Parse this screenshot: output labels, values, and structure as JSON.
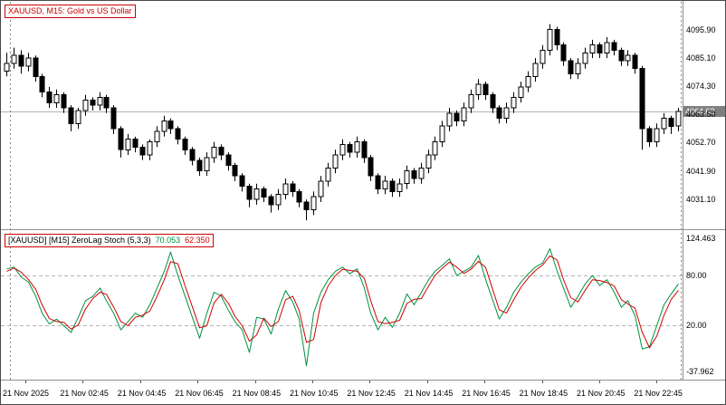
{
  "window": {
    "chart_title": "XAUUSD, M15:  Gold vs US Dollar",
    "indicator_title": "[XAUUSD] [M15] ZeroLag Stoch (5,3,3)",
    "indicator_value_main": "70.053",
    "indicator_value_signal": "62.350",
    "current_price": "4064.62"
  },
  "colors": {
    "background": "#ffffff",
    "bull_candle": "#ffffff",
    "bear_candle": "#000000",
    "candle_outline": "#000000",
    "main_line": "#009140",
    "signal_line": "#d10000",
    "label_red": "#cc0000",
    "price_box_bg": "#808080",
    "price_box_text": "#ffffff",
    "bid_line": "#b3b3b3",
    "level_line": "#b5b5b5",
    "separator": "#909090",
    "period_separator": "#888888"
  },
  "chart_data": [
    {
      "type": "candlestick",
      "symbol": "XAUUSD",
      "timeframe": "M15",
      "title": "XAUUSD, M15: Gold vs US Dollar",
      "ylim": [
        4021,
        4102
      ],
      "yticks": [
        {
          "value": 4095.9,
          "label": "4095.90"
        },
        {
          "value": 4085.1,
          "label": "4085.10"
        },
        {
          "value": 4074.3,
          "label": "4074.30"
        },
        {
          "value": 4063.5,
          "label": "4063.50"
        },
        {
          "value": 4052.7,
          "label": "4052.70"
        },
        {
          "value": 4041.9,
          "label": "4041.90"
        },
        {
          "value": 4031.1,
          "label": "4031.10"
        }
      ],
      "bid": 4064.62,
      "candles": [
        [
          4080,
          4087,
          4078,
          4083
        ],
        [
          4083,
          4089,
          4081,
          4086
        ],
        [
          4086,
          4088,
          4079,
          4082
        ],
        [
          4082,
          4087,
          4080,
          4085
        ],
        [
          4085,
          4086,
          4076,
          4078
        ],
        [
          4078,
          4079,
          4070,
          4072
        ],
        [
          4072,
          4074,
          4066,
          4068
        ],
        [
          4068,
          4073,
          4066,
          4071
        ],
        [
          4071,
          4072,
          4064,
          4066
        ],
        [
          4066,
          4067,
          4057,
          4060
        ],
        [
          4060,
          4066,
          4058,
          4065
        ],
        [
          4065,
          4071,
          4063,
          4069
        ],
        [
          4069,
          4070,
          4065,
          4067
        ],
        [
          4067,
          4072,
          4065,
          4070
        ],
        [
          4070,
          4071,
          4064,
          4066
        ],
        [
          4066,
          4067,
          4056,
          4058
        ],
        [
          4058,
          4059,
          4047,
          4050
        ],
        [
          4050,
          4056,
          4048,
          4054
        ],
        [
          4054,
          4055,
          4049,
          4051
        ],
        [
          4051,
          4052,
          4046,
          4048
        ],
        [
          4048,
          4054,
          4046,
          4053
        ],
        [
          4053,
          4059,
          4051,
          4057
        ],
        [
          4057,
          4063,
          4055,
          4061
        ],
        [
          4061,
          4062,
          4056,
          4058
        ],
        [
          4058,
          4059,
          4052,
          4054
        ],
        [
          4054,
          4055,
          4048,
          4050
        ],
        [
          4050,
          4051,
          4044,
          4046
        ],
        [
          4046,
          4047,
          4040,
          4042
        ],
        [
          4042,
          4049,
          4040,
          4047
        ],
        [
          4047,
          4053,
          4045,
          4051
        ],
        [
          4051,
          4052,
          4046,
          4048
        ],
        [
          4048,
          4049,
          4042,
          4044
        ],
        [
          4044,
          4045,
          4038,
          4040
        ],
        [
          4040,
          4041,
          4034,
          4036
        ],
        [
          4036,
          4037,
          4028,
          4031
        ],
        [
          4031,
          4037,
          4029,
          4035
        ],
        [
          4035,
          4036,
          4030,
          4032
        ],
        [
          4032,
          4033,
          4026,
          4029
        ],
        [
          4029,
          4035,
          4027,
          4033
        ],
        [
          4033,
          4039,
          4031,
          4037
        ],
        [
          4037,
          4038,
          4032,
          4034
        ],
        [
          4034,
          4035,
          4028,
          4030
        ],
        [
          4030,
          4031,
          4023,
          4027
        ],
        [
          4027,
          4034,
          4025,
          4032
        ],
        [
          4032,
          4040,
          4030,
          4038
        ],
        [
          4038,
          4045,
          4036,
          4043
        ],
        [
          4043,
          4050,
          4041,
          4048
        ],
        [
          4048,
          4054,
          4046,
          4052
        ],
        [
          4052,
          4053,
          4047,
          4049
        ],
        [
          4049,
          4055,
          4047,
          4053
        ],
        [
          4053,
          4054,
          4045,
          4047
        ],
        [
          4047,
          4048,
          4038,
          4040
        ],
        [
          4040,
          4041,
          4033,
          4035
        ],
        [
          4035,
          4040,
          4033,
          4038
        ],
        [
          4038,
          4039,
          4032,
          4034
        ],
        [
          4034,
          4039,
          4032,
          4037
        ],
        [
          4037,
          4044,
          4035,
          4042
        ],
        [
          4042,
          4043,
          4037,
          4039
        ],
        [
          4039,
          4045,
          4037,
          4043
        ],
        [
          4043,
          4050,
          4041,
          4048
        ],
        [
          4048,
          4055,
          4046,
          4053
        ],
        [
          4053,
          4061,
          4051,
          4059
        ],
        [
          4059,
          4066,
          4057,
          4064
        ],
        [
          4064,
          4065,
          4059,
          4061
        ],
        [
          4061,
          4068,
          4059,
          4066
        ],
        [
          4066,
          4073,
          4064,
          4071
        ],
        [
          4071,
          4077,
          4069,
          4075
        ],
        [
          4075,
          4076,
          4069,
          4071
        ],
        [
          4071,
          4072,
          4064,
          4066
        ],
        [
          4066,
          4067,
          4060,
          4062
        ],
        [
          4062,
          4068,
          4060,
          4066
        ],
        [
          4066,
          4072,
          4064,
          4070
        ],
        [
          4070,
          4076,
          4068,
          4074
        ],
        [
          4074,
          4080,
          4072,
          4078
        ],
        [
          4078,
          4085,
          4076,
          4083
        ],
        [
          4083,
          4090,
          4081,
          4088
        ],
        [
          4088,
          4098,
          4086,
          4096
        ],
        [
          4096,
          4097,
          4088,
          4090
        ],
        [
          4090,
          4091,
          4082,
          4084
        ],
        [
          4084,
          4085,
          4077,
          4079
        ],
        [
          4079,
          4085,
          4077,
          4083
        ],
        [
          4083,
          4089,
          4081,
          4087
        ],
        [
          4087,
          4092,
          4085,
          4090
        ],
        [
          4090,
          4091,
          4085,
          4087
        ],
        [
          4087,
          4093,
          4085,
          4091
        ],
        [
          4091,
          4092,
          4086,
          4088
        ],
        [
          4088,
          4089,
          4082,
          4084
        ],
        [
          4084,
          4088,
          4082,
          4086
        ],
        [
          4086,
          4087,
          4079,
          4081
        ],
        [
          4081,
          4082,
          4050,
          4058
        ],
        [
          4058,
          4059,
          4051,
          4053
        ],
        [
          4053,
          4060,
          4051,
          4058
        ],
        [
          4058,
          4064,
          4056,
          4062
        ],
        [
          4062,
          4063,
          4056,
          4059
        ],
        [
          4059,
          4066,
          4057,
          4064.6
        ]
      ]
    },
    {
      "type": "line",
      "name": "ZeroLag Stoch (5,3,3)",
      "ylim": [
        -37.962,
        124.463
      ],
      "yticks": [
        {
          "value": 124.463,
          "label": "124.463"
        },
        {
          "value": 80,
          "label": "80.00"
        },
        {
          "value": 20,
          "label": "20.00"
        },
        {
          "value": -37.962,
          "label": "-37.962"
        }
      ],
      "levels": [
        80,
        20
      ],
      "series": [
        {
          "name": "main",
          "color": "#009140",
          "values": [
            88,
            90,
            78,
            72,
            55,
            35,
            22,
            28,
            20,
            12,
            30,
            50,
            55,
            65,
            50,
            35,
            15,
            25,
            35,
            30,
            45,
            65,
            85,
            108,
            80,
            55,
            30,
            5,
            35,
            60,
            55,
            38,
            25,
            15,
            -12,
            30,
            28,
            10,
            40,
            62,
            48,
            28,
            -28,
            35,
            60,
            75,
            85,
            90,
            82,
            88,
            65,
            35,
            15,
            30,
            18,
            35,
            58,
            45,
            60,
            75,
            85,
            92,
            100,
            80,
            85,
            90,
            104,
            75,
            50,
            28,
            42,
            60,
            72,
            82,
            90,
            95,
            112,
            85,
            65,
            42,
            55,
            70,
            80,
            68,
            75,
            60,
            42,
            50,
            32,
            -8,
            -5,
            20,
            45,
            58,
            70.053
          ]
        },
        {
          "name": "signal",
          "color": "#d10000",
          "values": [
            85,
            89,
            84,
            75,
            63.5,
            45,
            28.5,
            25,
            24,
            16,
            21,
            40,
            52.5,
            60,
            57.5,
            42.5,
            25,
            20,
            30,
            32.5,
            37.5,
            55,
            75,
            96.5,
            94,
            67.5,
            42.5,
            17.5,
            20,
            47.5,
            57.5,
            46.5,
            31.5,
            20,
            1.5,
            9,
            29,
            19,
            25,
            51,
            55,
            38,
            0,
            3.5,
            47.5,
            67.5,
            80,
            87.5,
            86,
            85,
            76.5,
            50,
            25,
            22.5,
            24,
            26.5,
            46.5,
            51.5,
            52.5,
            67.5,
            80,
            88.5,
            96,
            90,
            82.5,
            87.5,
            97,
            89.5,
            62.5,
            39,
            35,
            51,
            66,
            77,
            86,
            92.5,
            103.5,
            98.5,
            75,
            53.5,
            48.5,
            62.5,
            75,
            74,
            71.5,
            67.5,
            51,
            46,
            41,
            12,
            -6.5,
            7.5,
            32.5,
            51.5,
            62.35
          ]
        }
      ]
    }
  ],
  "time_axis": {
    "labels": [
      "21 Nov 2025",
      "21 Nov 02:45",
      "21 Nov 04:45",
      "21 Nov 06:45",
      "21 Nov 08:45",
      "21 Nov 10:45",
      "21 Nov 12:45",
      "21 Nov 14:45",
      "21 Nov 16:45",
      "21 Nov 18:45",
      "21 Nov 20:45",
      "21 Nov 22:45"
    ]
  }
}
